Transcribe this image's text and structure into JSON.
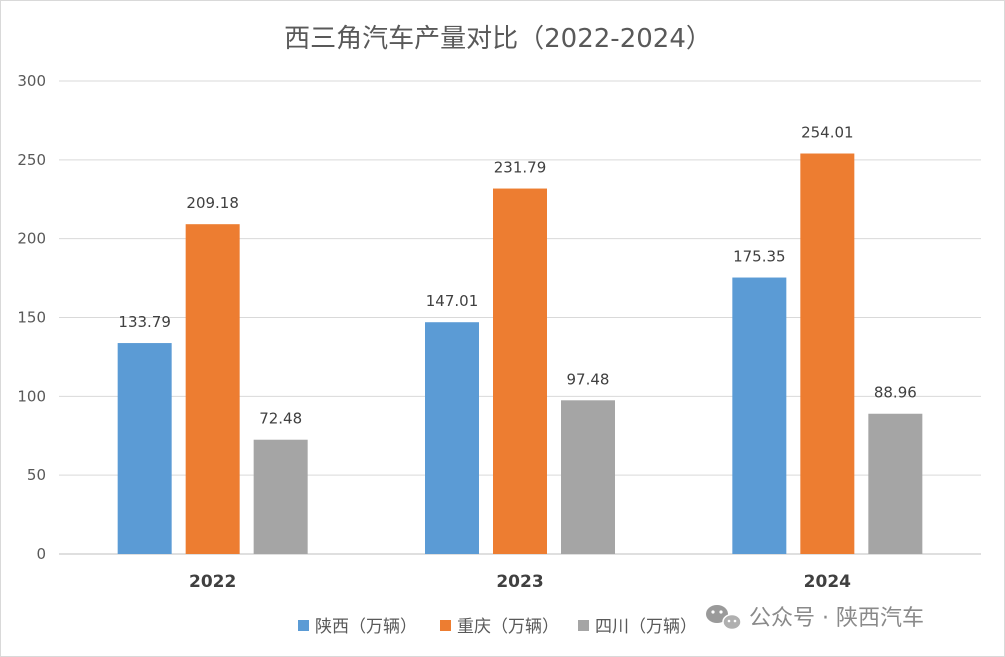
{
  "chart_data": {
    "type": "bar",
    "title": "西三角汽车产量对比（2022-2024）",
    "categories": [
      "2022",
      "2023",
      "2024"
    ],
    "series": [
      {
        "name": "陕西（万辆）",
        "color": "#5B9BD5",
        "values": [
          133.79,
          147.01,
          175.35
        ]
      },
      {
        "name": "重庆（万辆）",
        "color": "#ED7D31",
        "values": [
          209.18,
          231.79,
          254.01
        ]
      },
      {
        "name": "四川（万辆）",
        "color": "#A5A5A5",
        "values": [
          72.48,
          97.48,
          88.96
        ]
      }
    ],
    "ylim": [
      0,
      300
    ],
    "yticks": [
      0,
      50,
      100,
      150,
      200,
      250,
      300
    ],
    "xlabel": "",
    "ylabel": "",
    "grid": true,
    "legend_position": "bottom"
  },
  "watermark": {
    "icon": "wechat-icon",
    "text": "公众号 · 陕西汽车"
  }
}
